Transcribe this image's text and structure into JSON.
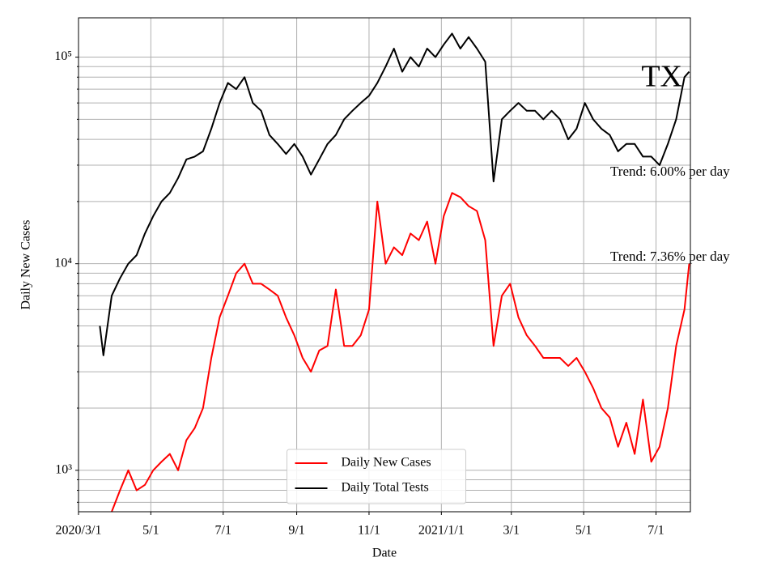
{
  "chart_data": {
    "type": "line",
    "annotations": [
      "TX",
      "Trend: 6.00% per day",
      "Trend: 7.36% per day"
    ],
    "xlabel": "Date",
    "ylabel": "Daily New Cases",
    "log_y": true,
    "grid": true,
    "legend": "lower center",
    "xlim": [
      "2020-03-01",
      "2021-07-30"
    ],
    "xticks": [
      {
        "value": "2020-03-01",
        "label": "2020/3/1"
      },
      {
        "value": "2020-05-01",
        "label": "5/1"
      },
      {
        "value": "2020-07-01",
        "label": "7/1"
      },
      {
        "value": "2020-09-01",
        "label": "9/1"
      },
      {
        "value": "2020-11-01",
        "label": "11/1"
      },
      {
        "value": "2021-01-01",
        "label": "2021/1/1"
      },
      {
        "value": "2021-03-01",
        "label": "3/1"
      },
      {
        "value": "2021-05-01",
        "label": "5/1"
      },
      {
        "value": "2021-07-01",
        "label": "7/1"
      }
    ],
    "ylim": [
      630,
      155000
    ],
    "yticks": [
      {
        "value": 1000,
        "label": "10³"
      },
      {
        "value": 10000,
        "label": "10⁴"
      },
      {
        "value": 100000,
        "label": "10⁵"
      }
    ],
    "yticks_minor": [
      700,
      800,
      900,
      2000,
      3000,
      4000,
      5000,
      6000,
      7000,
      8000,
      9000,
      20000,
      30000,
      40000,
      50000,
      60000,
      70000,
      80000,
      90000
    ],
    "x": [
      "2020-03-19",
      "2020-03-22",
      "2020-03-29",
      "2020-04-05",
      "2020-04-12",
      "2020-04-19",
      "2020-04-26",
      "2020-05-03",
      "2020-05-10",
      "2020-05-17",
      "2020-05-24",
      "2020-05-31",
      "2020-06-07",
      "2020-06-14",
      "2020-06-21",
      "2020-06-28",
      "2020-07-05",
      "2020-07-12",
      "2020-07-19",
      "2020-07-26",
      "2020-08-02",
      "2020-08-09",
      "2020-08-16",
      "2020-08-23",
      "2020-08-30",
      "2020-09-06",
      "2020-09-13",
      "2020-09-20",
      "2020-09-27",
      "2020-10-04",
      "2020-10-11",
      "2020-10-18",
      "2020-10-25",
      "2020-11-01",
      "2020-11-08",
      "2020-11-15",
      "2020-11-22",
      "2020-11-29",
      "2020-12-06",
      "2020-12-13",
      "2020-12-20",
      "2020-12-27",
      "2021-01-03",
      "2021-01-10",
      "2021-01-17",
      "2021-01-24",
      "2021-01-31",
      "2021-02-07",
      "2021-02-14",
      "2021-02-21",
      "2021-02-28",
      "2021-03-07",
      "2021-03-14",
      "2021-03-21",
      "2021-03-28",
      "2021-04-04",
      "2021-04-11",
      "2021-04-18",
      "2021-04-25",
      "2021-05-02",
      "2021-05-09",
      "2021-05-16",
      "2021-05-23",
      "2021-05-30",
      "2021-06-06",
      "2021-06-13",
      "2021-06-20",
      "2021-06-27",
      "2021-07-04",
      "2021-07-11",
      "2021-07-18",
      "2021-07-25",
      "2021-07-29"
    ],
    "series": [
      {
        "name": "Daily New Cases",
        "color": "#ff0000",
        "values": [
          null,
          null,
          630,
          800,
          1000,
          800,
          850,
          1000,
          1100,
          1200,
          1000,
          1400,
          1600,
          2000,
          3500,
          5500,
          7000,
          9000,
          10000,
          8000,
          8000,
          7500,
          7000,
          5500,
          4500,
          3500,
          3000,
          3800,
          4000,
          7500,
          4000,
          4000,
          4500,
          6000,
          20000,
          10000,
          12000,
          11000,
          14000,
          13000,
          16000,
          10000,
          17000,
          22000,
          21000,
          19000,
          18000,
          13000,
          4000,
          7000,
          8000,
          5500,
          4500,
          4000,
          3500,
          3500,
          3500,
          3200,
          3500,
          3000,
          2500,
          2000,
          1800,
          1300,
          1700,
          1200,
          2200,
          1100,
          1300,
          2000,
          4000,
          6000,
          10000
        ]
      },
      {
        "name": "Daily Total Tests",
        "color": "#000000",
        "values": [
          5000,
          3600,
          7000,
          8500,
          10000,
          11000,
          14000,
          17000,
          20000,
          22000,
          26000,
          32000,
          33000,
          35000,
          45000,
          60000,
          75000,
          70000,
          80000,
          60000,
          55000,
          42000,
          38000,
          34000,
          38000,
          33000,
          27000,
          32000,
          38000,
          42000,
          50000,
          55000,
          60000,
          65000,
          75000,
          90000,
          110000,
          85000,
          100000,
          90000,
          110000,
          100000,
          115000,
          130000,
          110000,
          125000,
          110000,
          95000,
          25000,
          50000,
          55000,
          60000,
          55000,
          55000,
          50000,
          55000,
          50000,
          40000,
          45000,
          60000,
          50000,
          45000,
          42000,
          35000,
          38000,
          38000,
          33000,
          33000,
          30000,
          38000,
          50000,
          80000,
          85000
        ]
      }
    ]
  }
}
